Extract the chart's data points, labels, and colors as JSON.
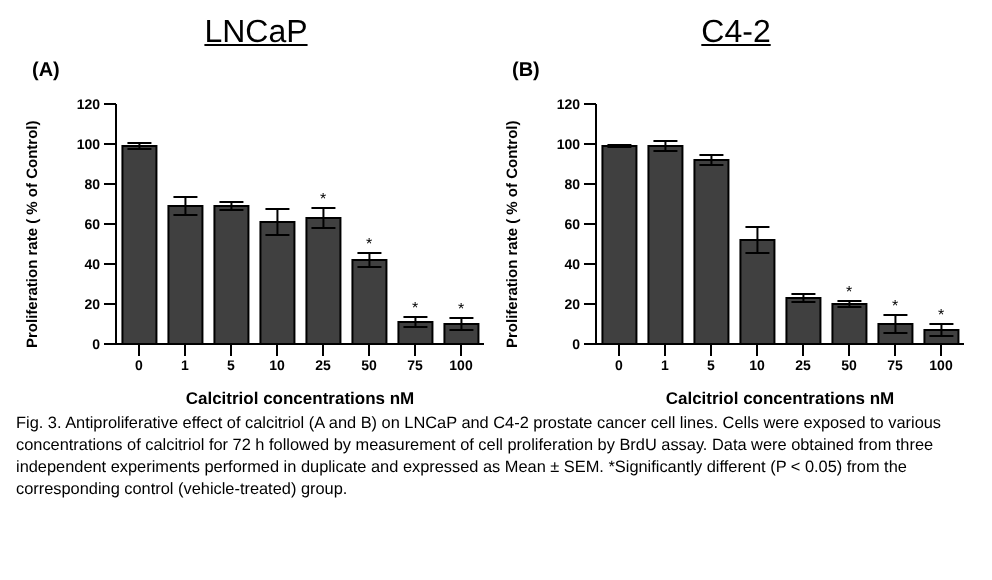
{
  "chart_data": [
    {
      "type": "bar",
      "title": "LNCaP",
      "subtitle": "(A)",
      "xlabel": "Calcitriol concentrations nM",
      "ylabel": "Proliferation rate ( % of Control)",
      "categories": [
        "0",
        "1",
        "5",
        "10",
        "25",
        "50",
        "75",
        "100"
      ],
      "values": [
        99,
        69,
        69,
        61,
        63,
        42,
        11,
        10
      ],
      "errors": [
        1.5,
        4.5,
        2,
        6.5,
        5,
        3.5,
        2.5,
        3
      ],
      "color": "#404040",
      "ylim": [
        0,
        120
      ],
      "yticks": [
        0,
        20,
        40,
        60,
        80,
        100,
        120
      ],
      "grid": false,
      "legend": false,
      "annotations": [
        {
          "text": "*",
          "x": "25",
          "y": 68
        },
        {
          "text": "*",
          "x": "50",
          "y": 45.5
        },
        {
          "text": "*",
          "x": "75",
          "y": 13.5
        },
        {
          "text": "*",
          "x": "100",
          "y": 13
        },
        "Fig. 3. Antiproliferative effect of calcitriol (A and B) on LNCaP and C4-2 prostate cancer cell lines. Cells were exposed to various concentrations of calcitriol for 72 h followed by measurement of cell proliferation by BrdU assay. Data were obtained from three independent experiments performed in duplicate and expressed as Mean ± SEM. *Significantly different (P < 0.05) from the corresponding control (vehicle-treated) group."
      ]
    },
    {
      "type": "bar",
      "title": "C4-2",
      "subtitle": "(B)",
      "xlabel": "Calcitriol concentrations nM",
      "ylabel": "Proliferation rate ( % of Control)",
      "categories": [
        "0",
        "1",
        "5",
        "10",
        "25",
        "50",
        "75",
        "100"
      ],
      "values": [
        99,
        99,
        92,
        52,
        23,
        20,
        10,
        7
      ],
      "errors": [
        0.5,
        2.5,
        2.5,
        6.5,
        2,
        1.5,
        4.5,
        3
      ],
      "color": "#404040",
      "ylim": [
        0,
        120
      ],
      "yticks": [
        0,
        20,
        40,
        60,
        80,
        100,
        120
      ],
      "grid": false,
      "legend": false,
      "annotations": [
        {
          "text": "*",
          "x": "50",
          "y": 21.5
        },
        {
          "text": "*",
          "x": "75",
          "y": 14.5
        },
        {
          "text": "*",
          "x": "100",
          "y": 10
        }
      ]
    }
  ]
}
